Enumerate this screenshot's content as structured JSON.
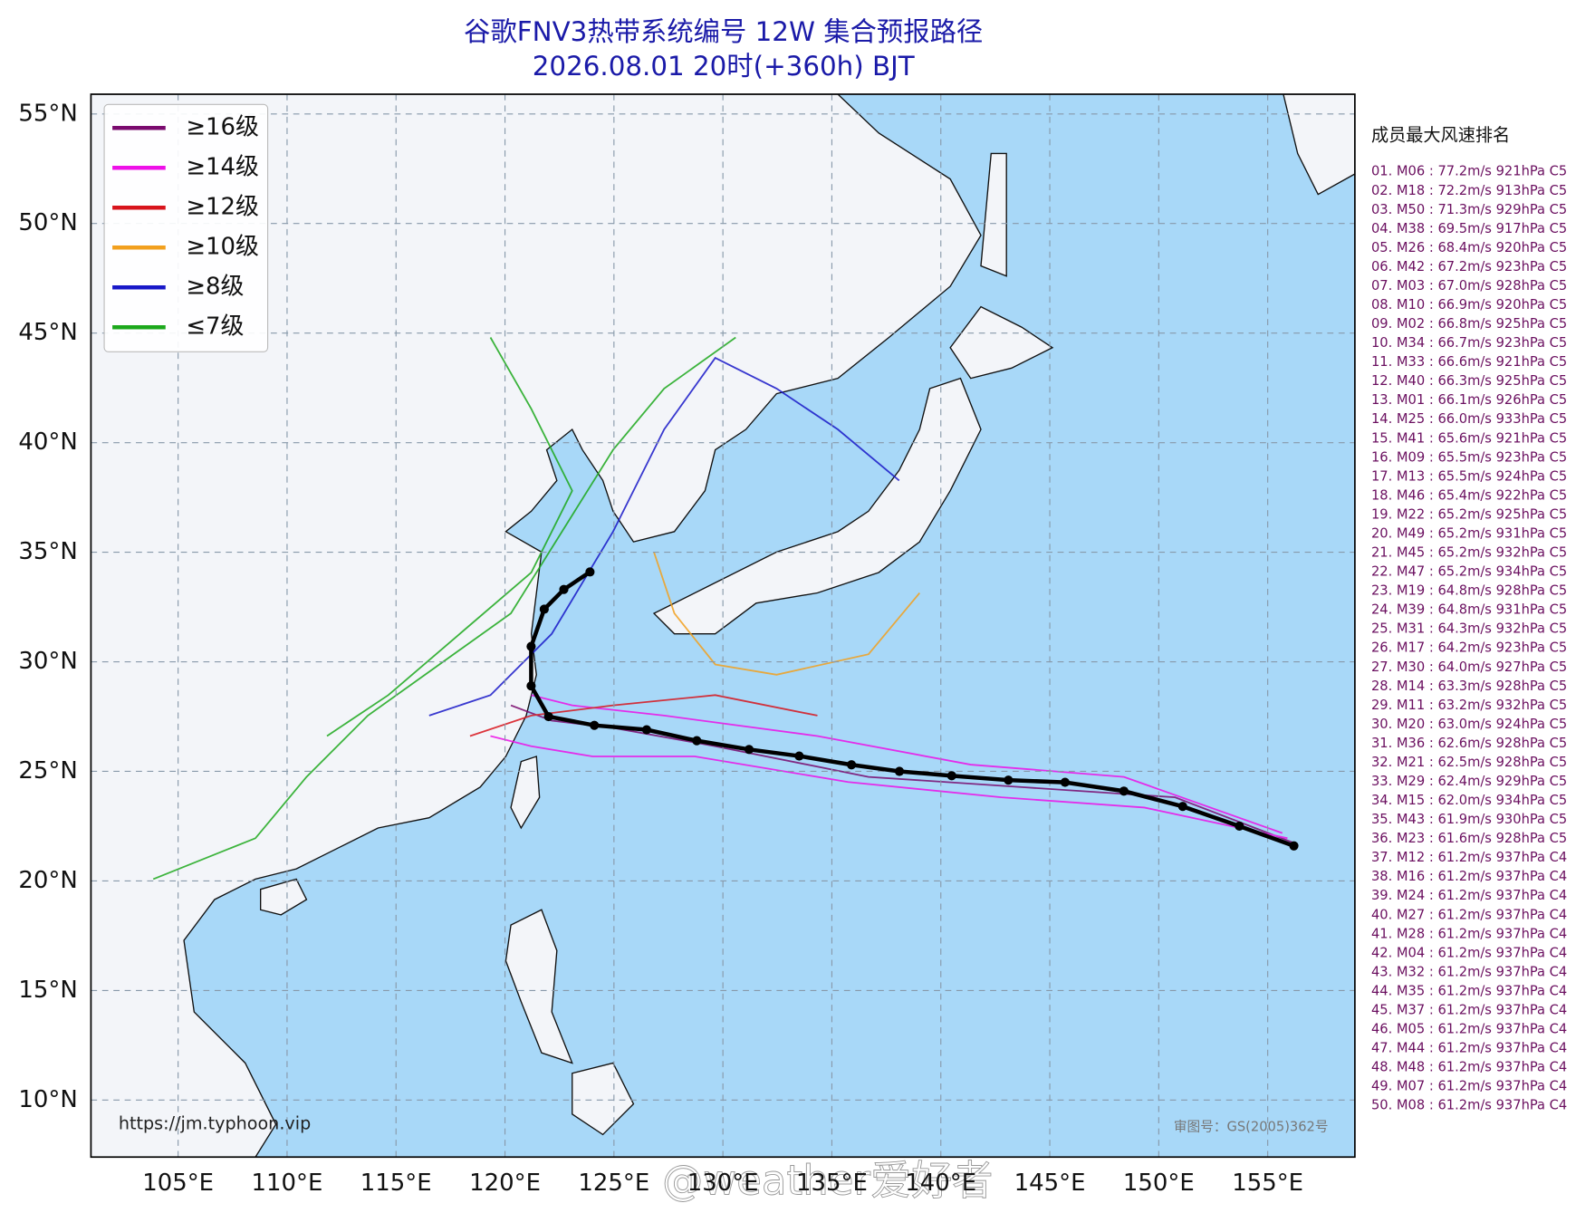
{
  "header": {
    "title": "谷歌FNV3热带系统编号 12W 集合预报路径",
    "subtitle": "2026.08.01 20时(+360h) BJT"
  },
  "map": {
    "xlim": [
      101,
      159
    ],
    "ylim": [
      7.4,
      55.9
    ],
    "xticks": [
      {
        "value": 105,
        "label": "105°E"
      },
      {
        "value": 110,
        "label": "110°E"
      },
      {
        "value": 115,
        "label": "115°E"
      },
      {
        "value": 120,
        "label": "120°E"
      },
      {
        "value": 125,
        "label": "125°E"
      },
      {
        "value": 130,
        "label": "130°E"
      },
      {
        "value": 135,
        "label": "135°E"
      },
      {
        "value": 140,
        "label": "140°E"
      },
      {
        "value": 145,
        "label": "145°E"
      },
      {
        "value": 150,
        "label": "150°E"
      },
      {
        "value": 155,
        "label": "155°E"
      }
    ],
    "yticks": [
      {
        "value": 10,
        "label": "10°N"
      },
      {
        "value": 15,
        "label": "15°N"
      },
      {
        "value": 20,
        "label": "20°N"
      },
      {
        "value": 25,
        "label": "25°N"
      },
      {
        "value": 30,
        "label": "30°N"
      },
      {
        "value": 35,
        "label": "35°N"
      },
      {
        "value": 40,
        "label": "40°N"
      },
      {
        "value": 45,
        "label": "45°N"
      },
      {
        "value": 50,
        "label": "50°N"
      },
      {
        "value": 55,
        "label": "55°N"
      }
    ],
    "grid": true,
    "legend": [
      {
        "name": "≥16级",
        "color": "#7a0a6e"
      },
      {
        "name": "≥14级",
        "color": "#ee10e8"
      },
      {
        "name": "≥12级",
        "color": "#d8141c"
      },
      {
        "name": "≥10级",
        "color": "#f2a01e"
      },
      {
        "name": "≥8级",
        "color": "#1818c8"
      },
      {
        "name": "≤7级",
        "color": "#1ca81c"
      }
    ],
    "mean_track": {
      "color": "#000000",
      "lon": [
        156.2,
        153.7,
        151.1,
        148.4,
        145.7,
        143.1,
        140.5,
        138.1,
        135.9,
        133.5,
        131.2,
        128.8,
        126.5,
        124.1,
        122.0,
        121.2,
        121.2,
        121.8,
        122.7,
        123.9
      ],
      "lat": [
        21.6,
        22.5,
        23.4,
        24.1,
        24.5,
        24.6,
        24.8,
        25.0,
        25.3,
        25.7,
        26.0,
        26.4,
        26.9,
        27.1,
        27.5,
        28.9,
        30.7,
        32.4,
        33.3,
        34.1
      ]
    },
    "source_url": "https://jm.typhoon.vip",
    "approval": "审图号：GS(2005)362号",
    "watermark": "@weather爱好者"
  },
  "ranking": {
    "title": "成员最大风速排名",
    "items": [
      "01. M06 : 77.2m/s 921hPa C5",
      "02. M18 : 72.2m/s 913hPa C5",
      "03. M50 : 71.3m/s 929hPa C5",
      "04. M38 : 69.5m/s 917hPa C5",
      "05. M26 : 68.4m/s 920hPa C5",
      "06. M42 : 67.2m/s 923hPa C5",
      "07. M03 : 67.0m/s 928hPa C5",
      "08. M10 : 66.9m/s 920hPa C5",
      "09. M02 : 66.8m/s 925hPa C5",
      "10. M34 : 66.7m/s 923hPa C5",
      "11. M33 : 66.6m/s 921hPa C5",
      "12. M40 : 66.3m/s 925hPa C5",
      "13. M01 : 66.1m/s 926hPa C5",
      "14. M25 : 66.0m/s 933hPa C5",
      "15. M41 : 65.6m/s 921hPa C5",
      "16. M09 : 65.5m/s 923hPa C5",
      "17. M13 : 65.5m/s 924hPa C5",
      "18. M46 : 65.4m/s 922hPa C5",
      "19. M22 : 65.2m/s 925hPa C5",
      "20. M49 : 65.2m/s 931hPa C5",
      "21. M45 : 65.2m/s 932hPa C5",
      "22. M47 : 65.2m/s 934hPa C5",
      "23. M19 : 64.8m/s 928hPa C5",
      "24. M39 : 64.8m/s 931hPa C5",
      "25. M31 : 64.3m/s 932hPa C5",
      "26. M17 : 64.2m/s 923hPa C5",
      "27. M30 : 64.0m/s 927hPa C5",
      "28. M14 : 63.3m/s 928hPa C5",
      "29. M11 : 63.2m/s 932hPa C5",
      "30. M20 : 63.0m/s 924hPa C5",
      "31. M36 : 62.6m/s 928hPa C5",
      "32. M21 : 62.5m/s 928hPa C5",
      "33. M29 : 62.4m/s 929hPa C5",
      "34. M15 : 62.0m/s 934hPa C5",
      "35. M43 : 61.9m/s 930hPa C5",
      "36. M23 : 61.6m/s 928hPa C5",
      "37. M12 : 61.2m/s 937hPa C4",
      "38. M16 : 61.2m/s 937hPa C4",
      "39. M24 : 61.2m/s 937hPa C4",
      "40. M27 : 61.2m/s 937hPa C4",
      "41. M28 : 61.2m/s 937hPa C4",
      "42. M04 : 61.2m/s 937hPa C4",
      "43. M32 : 61.2m/s 937hPa C4",
      "44. M35 : 61.2m/s 937hPa C4",
      "45. M37 : 61.2m/s 937hPa C4",
      "46. M05 : 61.2m/s 937hPa C4",
      "47. M44 : 61.2m/s 937hPa C4",
      "48. M48 : 61.2m/s 937hPa C4",
      "49. M07 : 61.2m/s 937hPa C4",
      "50. M08 : 61.2m/s 937hPa C4"
    ]
  }
}
